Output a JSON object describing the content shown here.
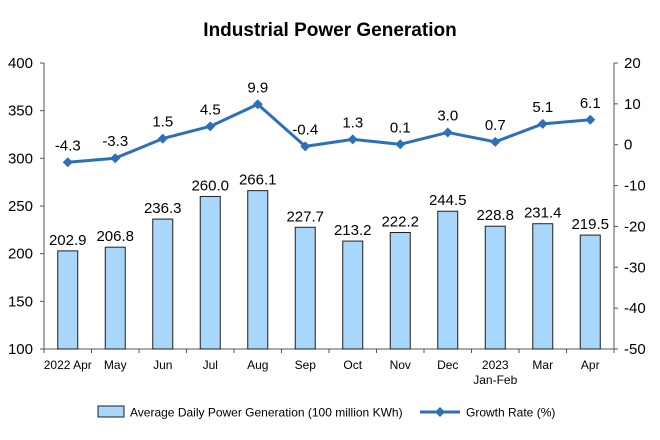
{
  "chart_data": {
    "type": "bar",
    "title": "Industrial Power Generation",
    "categories": [
      [
        "2022 Apr"
      ],
      [
        "May"
      ],
      [
        "Jun"
      ],
      [
        "Jul"
      ],
      [
        "Aug"
      ],
      [
        "Sep"
      ],
      [
        "Oct"
      ],
      [
        "Nov"
      ],
      [
        "Dec"
      ],
      [
        "2023",
        "Jan-Feb"
      ],
      [
        "Mar"
      ],
      [
        "Apr"
      ]
    ],
    "series": [
      {
        "name": "Average Daily Power Generation (100 million KWh)",
        "type": "bar",
        "axis": "left",
        "values": [
          202.9,
          206.8,
          236.3,
          260.0,
          266.1,
          227.7,
          213.2,
          222.2,
          244.5,
          228.8,
          231.4,
          219.5
        ],
        "labels": [
          "202.9",
          "206.8",
          "236.3",
          "260.0",
          "266.1",
          "227.7",
          "213.2",
          "222.2",
          "244.5",
          "228.8",
          "231.4",
          "219.5"
        ],
        "fill": "#a9d6fb",
        "stroke": "#1f1f1f"
      },
      {
        "name": "Growth Rate (%)",
        "type": "line",
        "axis": "right",
        "values": [
          -4.3,
          -3.3,
          1.5,
          4.5,
          9.9,
          -0.4,
          1.3,
          0.1,
          3.0,
          0.7,
          5.1,
          6.1
        ],
        "labels": [
          "-4.3",
          "-3.3",
          "1.5",
          "4.5",
          "9.9",
          "-0.4",
          "1.3",
          "0.1",
          "3.0",
          "0.7",
          "5.1",
          "6.1"
        ],
        "color": "#2e6fba",
        "marker": "diamond"
      }
    ],
    "y_left": {
      "ylim": [
        100,
        400
      ],
      "ticks": [
        "100",
        "150",
        "200",
        "250",
        "300",
        "350",
        "400"
      ]
    },
    "y_right": {
      "ylim": [
        -50,
        20
      ],
      "ticks": [
        "-50",
        "-40",
        "-30",
        "-20",
        "-10",
        "0",
        "10",
        "20"
      ]
    },
    "grid": false,
    "legend_position": "bottom"
  }
}
